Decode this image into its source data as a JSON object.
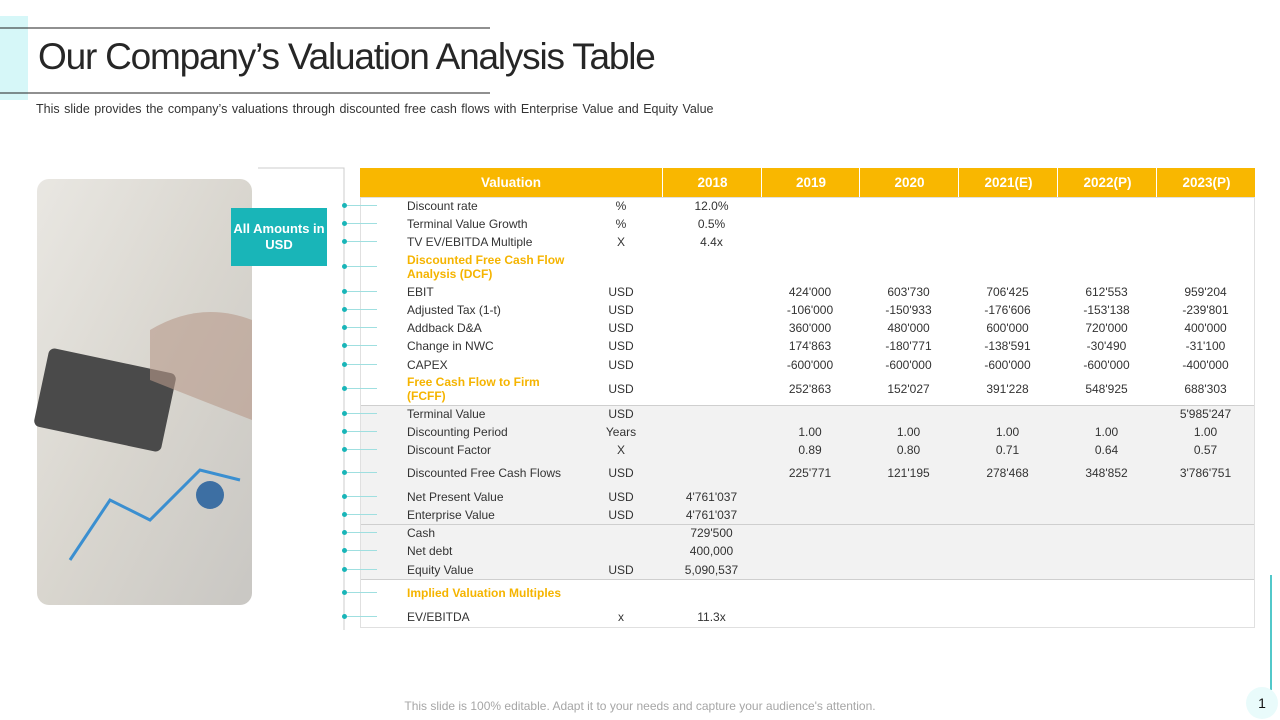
{
  "header": {
    "title": "Our Company’s Valuation Analysis Table",
    "subtitle": "This slide provides  the company’s valuations through  discounted free  cash flows with Enterprise Value and Equity Value"
  },
  "badge": "All Amounts in USD",
  "table": {
    "header_color": "#f9b700",
    "columns": [
      "Valuation",
      "2018",
      "2019",
      "2020",
      "2021(E)",
      "2022(P)",
      "2023(P)"
    ],
    "rows": [
      {
        "label": "Discount rate",
        "unit": "%",
        "cells": [
          "12.0%",
          null,
          null,
          null,
          null,
          null
        ]
      },
      {
        "label": "Terminal Value Growth",
        "unit": "%",
        "cells": [
          "0.5%",
          null,
          null,
          null,
          null,
          null
        ]
      },
      {
        "label": "TV EV/EBITDA  Multiple",
        "unit": "X",
        "cells": [
          "4.4x",
          null,
          null,
          null,
          null,
          null
        ]
      },
      {
        "label": "Discounted  Free Cash Flow Analysis  (DCF)",
        "unit": null,
        "cells": [
          null,
          null,
          null,
          null,
          null,
          null
        ],
        "color": "#f5b400"
      },
      {
        "label": "EBIT",
        "unit": "USD",
        "cells": [
          null,
          "424'000",
          "603'730",
          "706'425",
          "612'553",
          "959'204"
        ]
      },
      {
        "label": "Adjusted Tax (1-t)",
        "unit": "USD",
        "cells": [
          null,
          "-106'000",
          "-150'933",
          "-176'606",
          "-153'138",
          "-239'801"
        ]
      },
      {
        "label": "Addback D&A",
        "unit": "USD",
        "cells": [
          null,
          "360'000",
          "480'000",
          "600'000",
          "720'000",
          "400'000"
        ]
      },
      {
        "label": "Change in NWC",
        "unit": "USD",
        "cells": [
          null,
          "174'863",
          "-180'771",
          "-138'591",
          "-30'490",
          "-31'100"
        ]
      },
      {
        "label": "CAPEX",
        "unit": "USD",
        "cells": [
          null,
          "-600'000",
          "-600'000",
          "-600'000",
          "-600'000",
          "-400'000"
        ]
      },
      {
        "label": "Free Cash Flow  to Firm (FCFF)",
        "unit": "USD",
        "cells": [
          null,
          "252'863",
          "152'027",
          "391'228",
          "548'925",
          "688'303"
        ],
        "color": "#f5b400"
      },
      {
        "label": "Terminal Value",
        "unit": "USD",
        "cells": [
          null,
          null,
          null,
          null,
          null,
          "5'985'247"
        ],
        "shaded": true
      },
      {
        "label": "Discounting Period",
        "unit": "Years",
        "cells": [
          null,
          "1.00",
          "1.00",
          "1.00",
          "1.00",
          "1.00"
        ],
        "shaded": true
      },
      {
        "label": "Discount Factor",
        "unit": "X",
        "cells": [
          null,
          "0.89",
          "0.80",
          "0.71",
          "0.64",
          "0.57"
        ],
        "shaded": true
      },
      {
        "label": "Discounted Free Cash Flows",
        "unit": "USD",
        "cells": [
          null,
          "225'771",
          "121'195",
          "278'468",
          "348'852",
          "3'786'751"
        ],
        "shaded": true
      },
      {
        "label": "Net Present Value",
        "unit": "USD",
        "cells": [
          "4'761'037",
          null,
          null,
          null,
          null,
          null
        ],
        "shaded": true
      },
      {
        "label": "Enterprise Value",
        "unit": "USD",
        "cells": [
          "4'761'037",
          null,
          null,
          null,
          null,
          null
        ],
        "shaded": true
      },
      {
        "label": "Cash",
        "unit": null,
        "cells": [
          "729'500",
          null,
          null,
          null,
          null,
          null
        ],
        "shaded": true
      },
      {
        "label": "Net debt",
        "unit": null,
        "cells": [
          "400,000",
          null,
          null,
          null,
          null,
          null
        ],
        "shaded": true
      },
      {
        "label": "Equity Value",
        "unit": "USD",
        "cells": [
          "5,090,537",
          null,
          null,
          null,
          null,
          null
        ],
        "shaded": true
      },
      {
        "label": "Implied Valuation Multiples",
        "unit": null,
        "cells": [
          null,
          null,
          null,
          null,
          null,
          null
        ],
        "color": "#f5b400"
      },
      {
        "label": "EV/EBITDA",
        "unit": "x",
        "cells": [
          "11.3x",
          null,
          null,
          null,
          null,
          null
        ]
      }
    ]
  },
  "footer": "This slide is 100% editable. Adapt it to your needs and capture your audience's attention.",
  "page_number": "1"
}
